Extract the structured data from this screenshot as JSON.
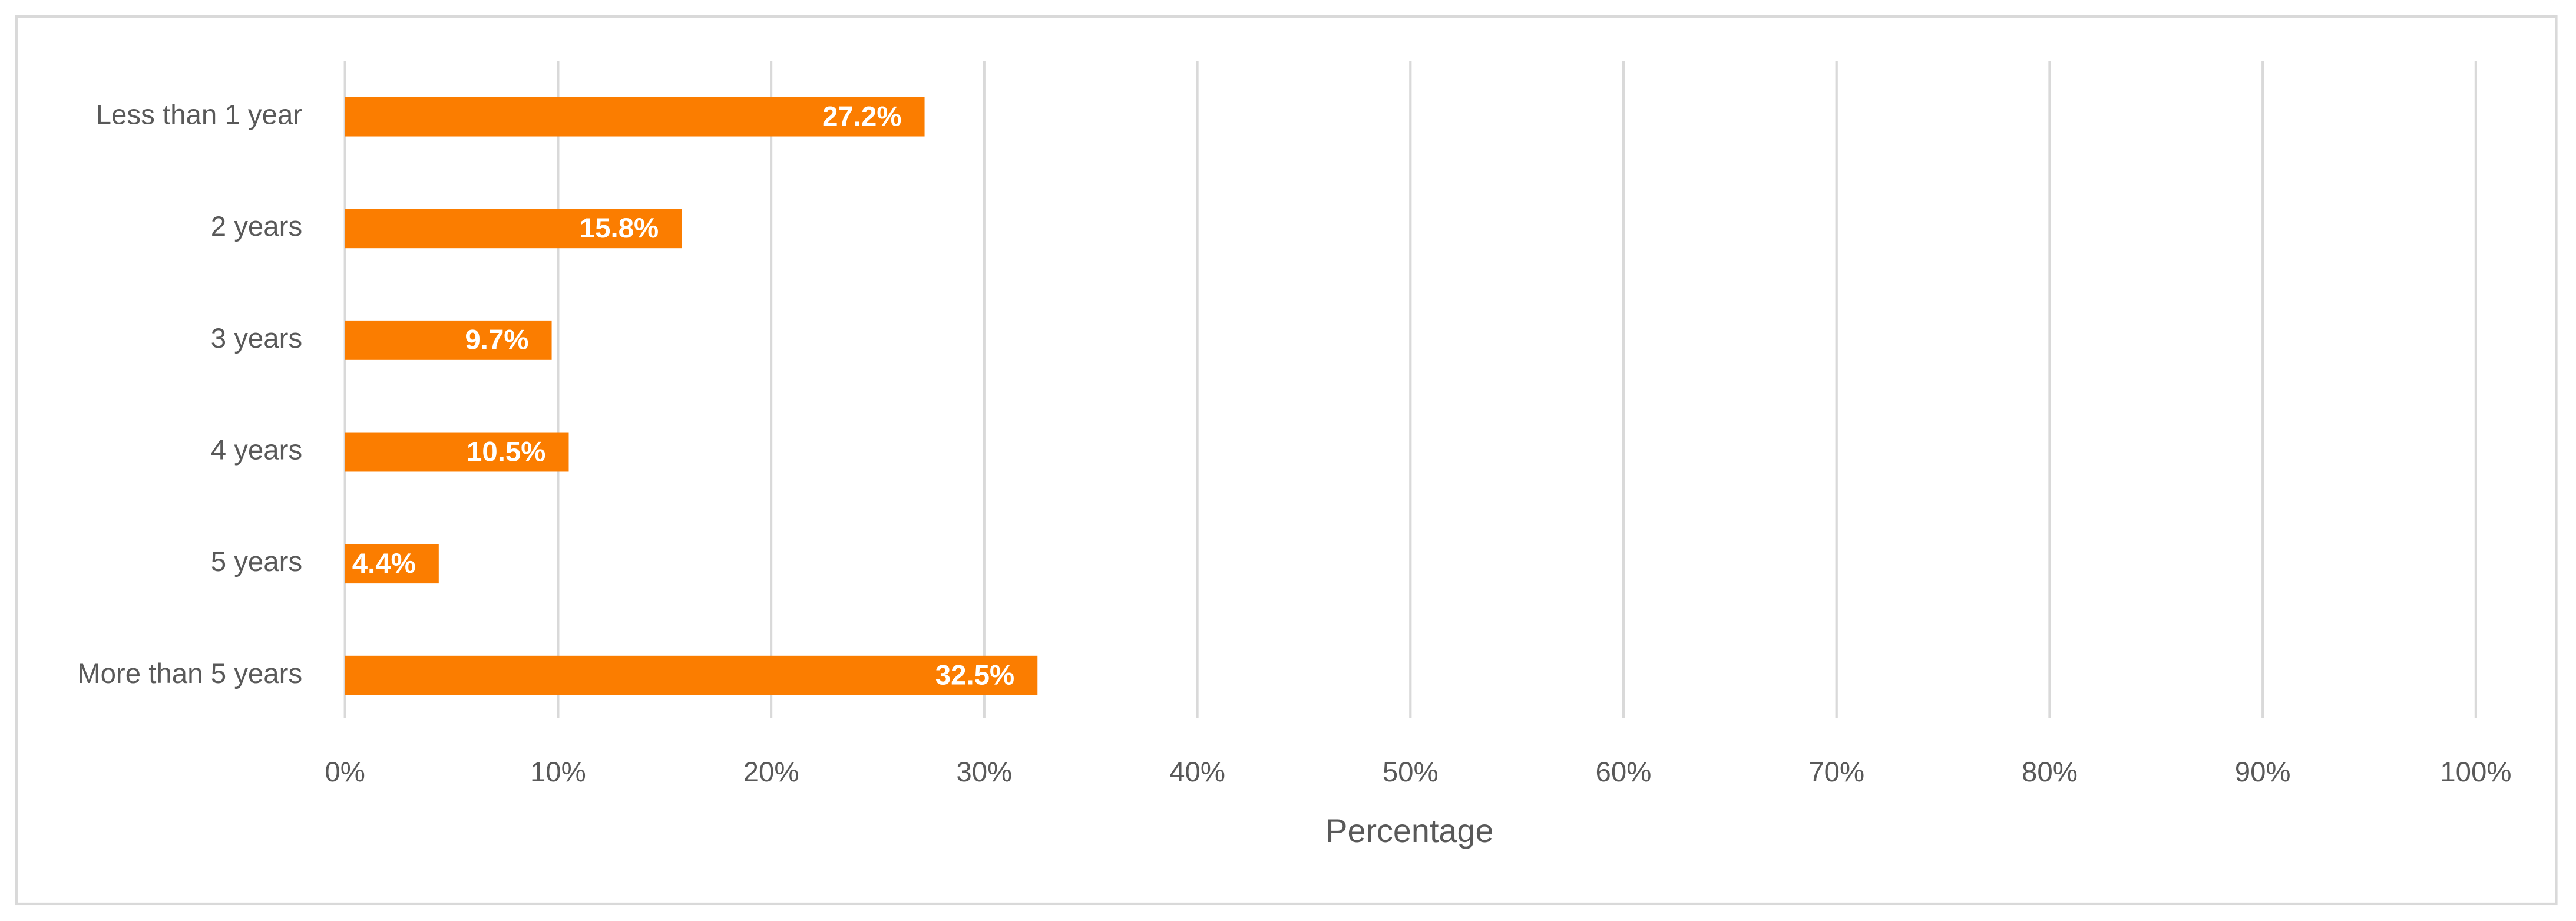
{
  "chart_data": {
    "type": "bar",
    "orientation": "horizontal",
    "x_label": "Percentage",
    "categories": [
      "Less than 1 year",
      "2 years",
      "3 years",
      "4 years",
      "5 years",
      "More than 5 years"
    ],
    "values": [
      27.2,
      15.8,
      9.7,
      10.5,
      4.4,
      32.5
    ],
    "value_labels": [
      "27.2%",
      "15.8%",
      "9.7%",
      "10.5%",
      "4.4%",
      "32.5%"
    ],
    "color": "#fb7d00",
    "xlim": [
      0,
      100
    ],
    "xticks": [
      {
        "value": 0,
        "label": "0%"
      },
      {
        "value": 10,
        "label": "10%"
      },
      {
        "value": 20,
        "label": "20%"
      },
      {
        "value": 30,
        "label": "30%"
      },
      {
        "value": 40,
        "label": "40%"
      },
      {
        "value": 50,
        "label": "50%"
      },
      {
        "value": 60,
        "label": "60%"
      },
      {
        "value": 70,
        "label": "70%"
      },
      {
        "value": 80,
        "label": "80%"
      },
      {
        "value": 90,
        "label": "90%"
      },
      {
        "value": 100,
        "label": "100%"
      }
    ],
    "grid": true
  }
}
